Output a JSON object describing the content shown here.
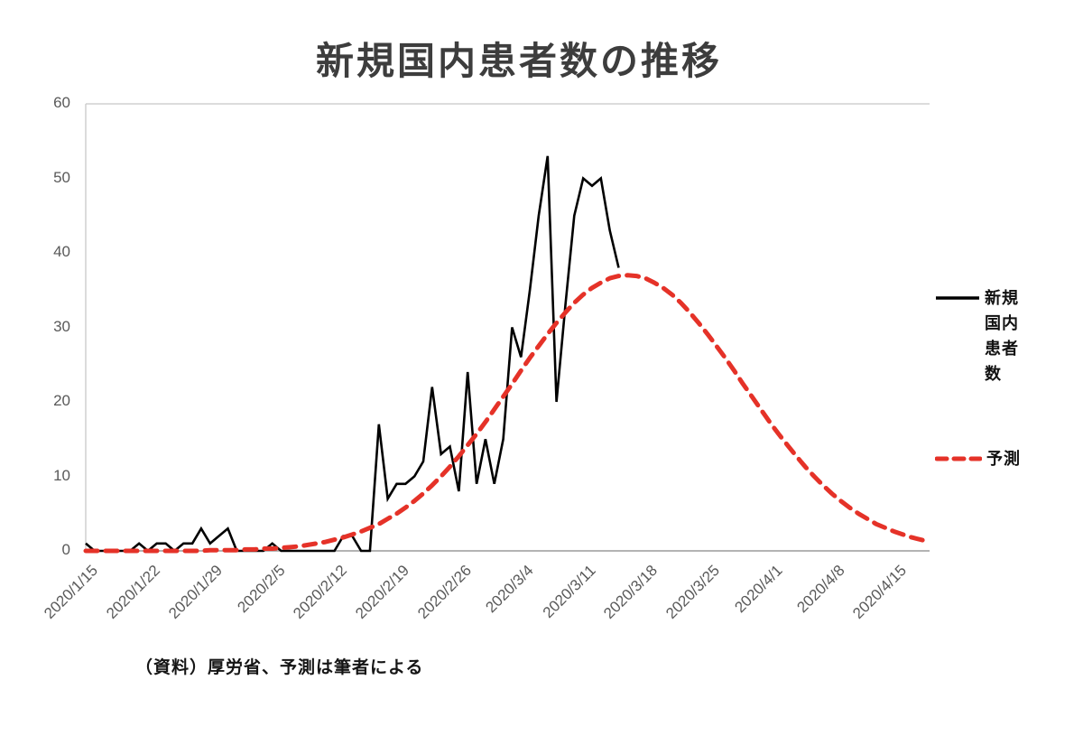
{
  "title": "新規国内患者数の推移",
  "source_note": "（資料）厚労省、予測は筆者による",
  "legend": {
    "actual_label": "新規国内患者数",
    "forecast_label": "予測"
  },
  "colors": {
    "actual": "#000000",
    "forecast": "#e53228",
    "axis_text": "#595959",
    "title_text": "#3d3d3d",
    "gridline": "#c8c8c8",
    "axis_line": "#9b9b9b"
  },
  "chart_data": {
    "type": "line",
    "title": "新規国内患者数の推移",
    "xlabel": "",
    "ylabel": "",
    "ylim": [
      0,
      60
    ],
    "y_ticks": [
      0,
      10,
      20,
      30,
      40,
      50,
      60
    ],
    "grid": "top-line-only",
    "legend_position": "right",
    "x_days_total": 96,
    "x_start_date": "2020/1/15",
    "x_tick_labels": [
      "2020/1/15",
      "2020/1/22",
      "2020/1/29",
      "2020/2/5",
      "2020/2/12",
      "2020/2/19",
      "2020/2/26",
      "2020/3/4",
      "2020/3/11",
      "2020/3/18",
      "2020/3/25",
      "2020/4/1",
      "2020/4/8",
      "2020/4/15"
    ],
    "x_tick_day_indices": [
      0,
      7,
      14,
      21,
      28,
      35,
      42,
      49,
      56,
      63,
      70,
      77,
      84,
      91
    ],
    "series": [
      {
        "name": "新規国内患者数",
        "style": "solid",
        "color": "#000000",
        "start_day": 0,
        "values": [
          1,
          0,
          0,
          0,
          0,
          0,
          1,
          0,
          1,
          1,
          0,
          1,
          1,
          3,
          1,
          2,
          3,
          0,
          0,
          0,
          0,
          1,
          0,
          0,
          0,
          0,
          0,
          0,
          0,
          2,
          2,
          0,
          0,
          17,
          7,
          9,
          9,
          10,
          12,
          22,
          13,
          14,
          8,
          24,
          9,
          15,
          9,
          15,
          30,
          26,
          35,
          45,
          53,
          20,
          33,
          45,
          50,
          49,
          50,
          43,
          38
        ]
      },
      {
        "name": "予測",
        "style": "dashed",
        "color": "#e53228",
        "start_day": 0,
        "values": [
          0,
          0,
          0,
          0,
          0,
          0,
          0,
          0,
          0,
          0,
          0,
          0,
          0,
          0,
          0.1,
          0.1,
          0.1,
          0.1,
          0.2,
          0.2,
          0.3,
          0.3,
          0.4,
          0.5,
          0.6,
          0.8,
          1,
          1.2,
          1.5,
          1.8,
          2.2,
          2.6,
          3.1,
          3.6,
          4.3,
          5,
          5.8,
          6.7,
          7.7,
          8.8,
          10,
          11.3,
          12.7,
          14.2,
          15.7,
          17.3,
          19,
          20.7,
          22.4,
          24.2,
          25.9,
          27.5,
          29.1,
          30.6,
          32,
          33.3,
          34.4,
          35.3,
          36,
          36.6,
          36.9,
          37,
          36.9,
          36.6,
          36,
          35.3,
          34.4,
          33.3,
          32,
          30.6,
          29.1,
          27.5,
          25.9,
          24.2,
          22.4,
          20.7,
          19,
          17.3,
          15.7,
          14.2,
          12.7,
          11.3,
          10,
          8.8,
          7.7,
          6.7,
          5.8,
          5,
          4.3,
          3.6,
          3.1,
          2.6,
          2.2,
          1.8,
          1.5,
          1.2
        ]
      }
    ]
  }
}
